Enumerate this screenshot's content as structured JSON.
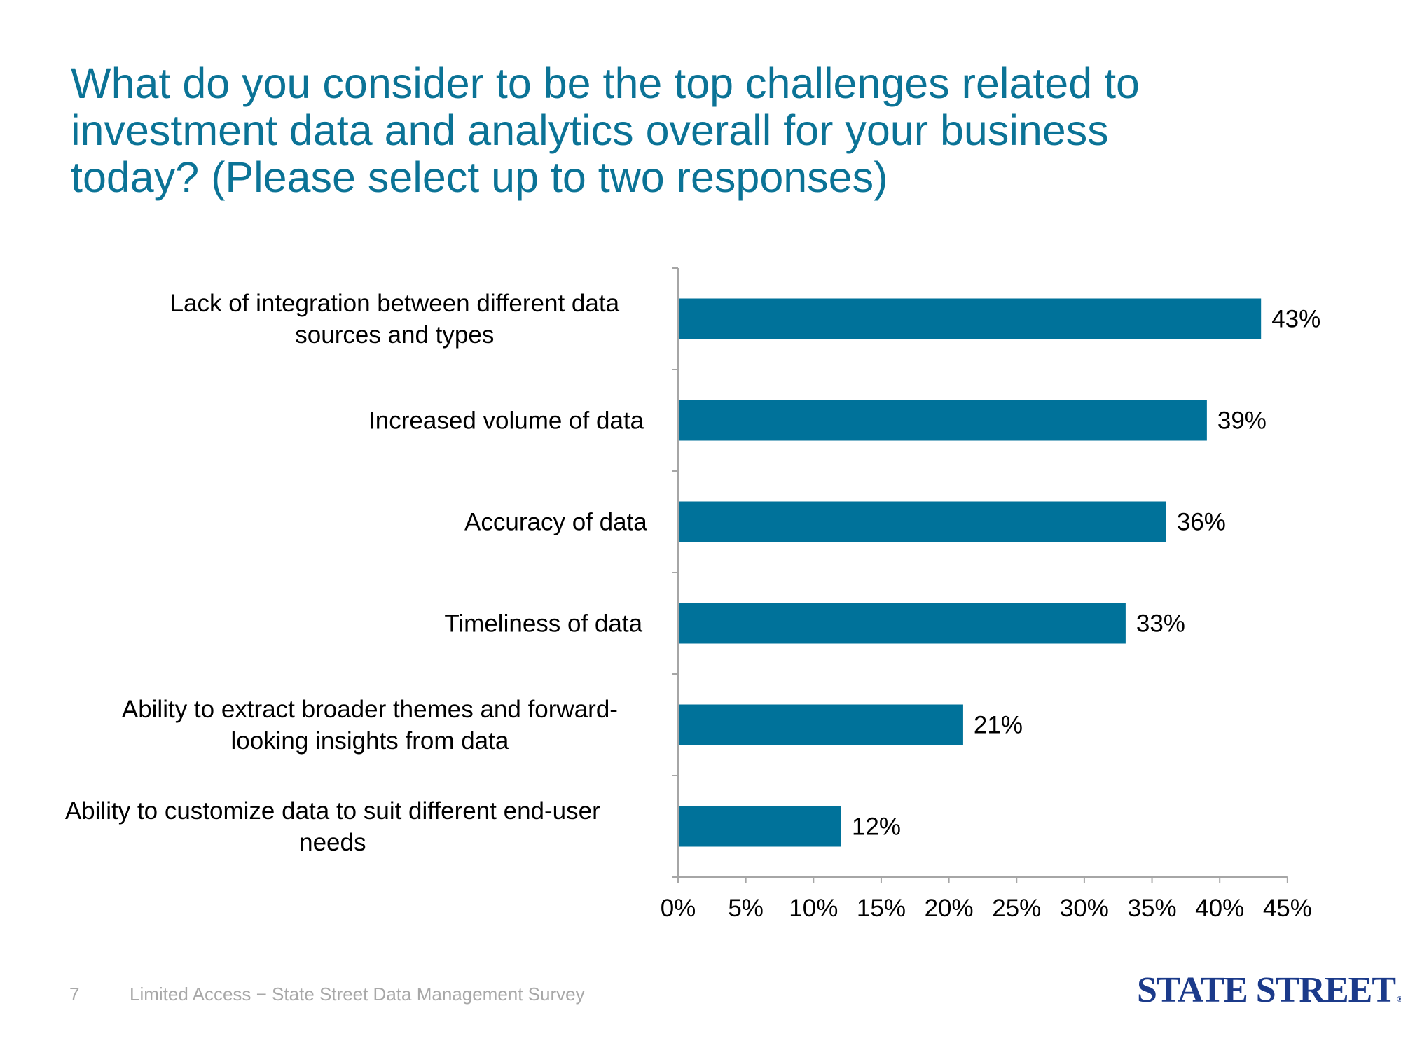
{
  "slide": {
    "title_lines": [
      "What do you consider to be the top challenges related to",
      "investment data and analytics overall for your business",
      "today? (Please select up to two responses)"
    ],
    "footer": {
      "page_number": "7",
      "text": "Limited Access − State Street Data Management Survey"
    },
    "logo_text": "STATE STREET",
    "logo_mark": "®"
  },
  "colors": {
    "title": "#0b7396",
    "bar": "#00729a",
    "axis": "#a6a6a6",
    "label_text": "#000000",
    "footer_text": "#a8a8a8",
    "logo": "#1b3a8a"
  },
  "chart_data": {
    "type": "bar",
    "orientation": "horizontal",
    "categories": [
      [
        "Lack of integration between different data",
        "sources and types"
      ],
      [
        "Increased volume of data"
      ],
      [
        "Accuracy of data"
      ],
      [
        "Timeliness of data"
      ],
      [
        "Ability to extract broader themes and forward-",
        "looking insights from data"
      ],
      [
        "Ability to customize data to suit different end-user",
        "needs"
      ]
    ],
    "values": [
      43,
      39,
      36,
      33,
      21,
      12
    ],
    "data_labels": [
      "43%",
      "39%",
      "36%",
      "33%",
      "21%",
      "12%"
    ],
    "x_ticks": [
      "0%",
      "5%",
      "10%",
      "15%",
      "20%",
      "25%",
      "30%",
      "35%",
      "40%",
      "45%"
    ],
    "xlim": [
      0,
      45
    ],
    "grid": false,
    "legend": "none"
  }
}
